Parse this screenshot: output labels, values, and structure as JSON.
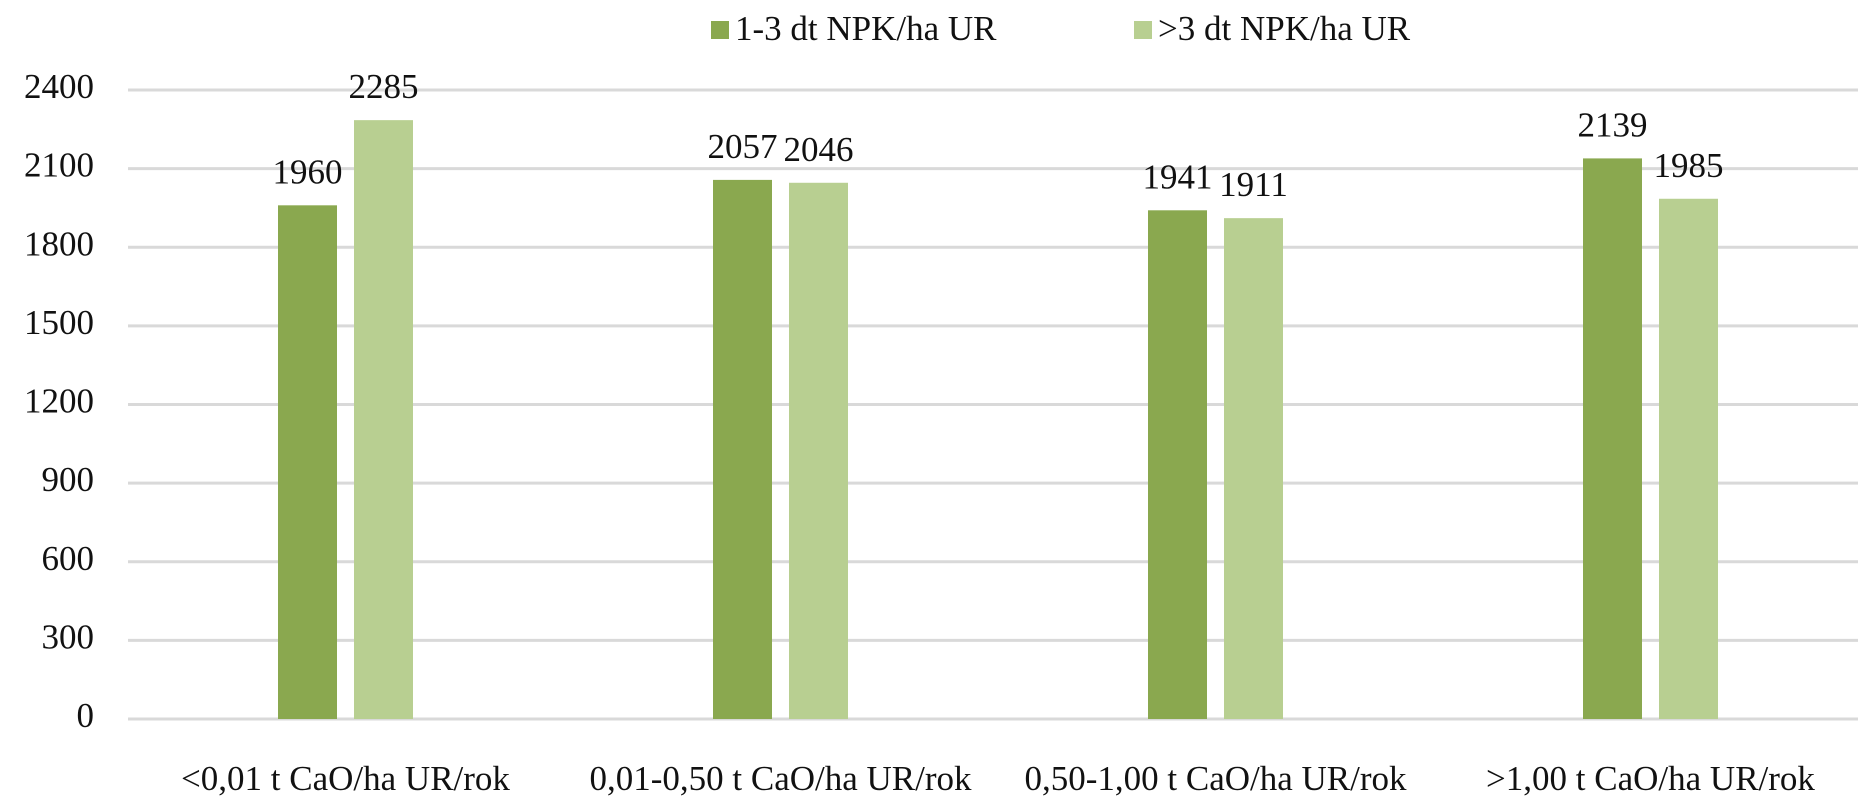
{
  "chart_data": {
    "type": "bar",
    "categories": [
      "<0,01 t CaO/ha UR/rok",
      "0,01-0,50 t CaO/ha UR/rok",
      "0,50-1,00 t CaO/ha UR/rok",
      ">1,00 t CaO/ha UR/rok"
    ],
    "series": [
      {
        "name": "1-3 dt NPK/ha UR",
        "color": "#8aa84f",
        "values": [
          1960,
          2057,
          1941,
          2139
        ]
      },
      {
        "name": ">3 dt NPK/ha UR",
        "color": "#b8cf91",
        "values": [
          2285,
          2046,
          1911,
          1985
        ]
      }
    ],
    "ylim": [
      0,
      2400
    ],
    "yticks": [
      0,
      300,
      600,
      900,
      1200,
      1500,
      1800,
      2100,
      2400
    ],
    "grid": true,
    "legend": "top"
  }
}
